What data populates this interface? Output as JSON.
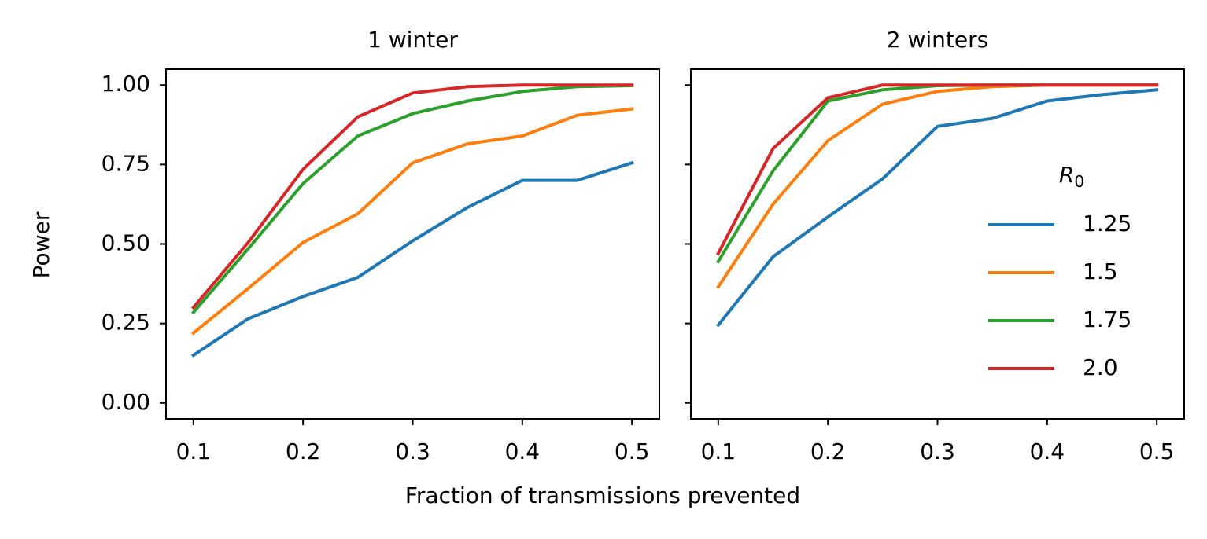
{
  "figure": {
    "ylabel": "Power",
    "xlabel": "Fraction of transmissions prevented"
  },
  "chart_data": [
    {
      "type": "line",
      "title": "1 winter",
      "xlabel": "Fraction of transmissions prevented",
      "ylabel": "Power",
      "x": [
        0.1,
        0.15,
        0.2,
        0.25,
        0.3,
        0.35,
        0.4,
        0.45,
        0.5
      ],
      "xlim": [
        0.075,
        0.525
      ],
      "ylim": [
        -0.05,
        1.05
      ],
      "xticks": [
        "0.1",
        "0.2",
        "0.3",
        "0.4",
        "0.5"
      ],
      "yticks": [
        "0.00",
        "0.25",
        "0.50",
        "0.75",
        "1.00"
      ],
      "grid": false,
      "series": [
        {
          "name": "1.25",
          "color": "#1f77b4",
          "values": [
            0.15,
            0.265,
            0.335,
            0.395,
            0.51,
            0.615,
            0.7,
            0.7,
            0.755
          ]
        },
        {
          "name": "1.5",
          "color": "#ff7f0e",
          "values": [
            0.22,
            0.36,
            0.505,
            0.595,
            0.755,
            0.815,
            0.84,
            0.905,
            0.925
          ]
        },
        {
          "name": "1.75",
          "color": "#2ca02c",
          "values": [
            0.285,
            0.485,
            0.69,
            0.84,
            0.91,
            0.95,
            0.98,
            0.995,
            0.998
          ]
        },
        {
          "name": "2.0",
          "color": "#d62728",
          "values": [
            0.3,
            0.505,
            0.735,
            0.9,
            0.975,
            0.995,
            1.0,
            1.0,
            1.0
          ]
        }
      ]
    },
    {
      "type": "line",
      "title": "2 winters",
      "xlabel": "Fraction of transmissions prevented",
      "ylabel": "Power",
      "x": [
        0.1,
        0.15,
        0.2,
        0.25,
        0.3,
        0.35,
        0.4,
        0.45,
        0.5
      ],
      "xlim": [
        0.075,
        0.525
      ],
      "ylim": [
        -0.05,
        1.05
      ],
      "xticks": [
        "0.1",
        "0.2",
        "0.3",
        "0.4",
        "0.5"
      ],
      "yticks": [
        "0.00",
        "0.25",
        "0.50",
        "0.75",
        "1.00"
      ],
      "grid": false,
      "legend": {
        "title": "R0",
        "title_main": "R",
        "title_sub": "0",
        "placement": "lower right"
      },
      "series": [
        {
          "name": "1.25",
          "color": "#1f77b4",
          "values": [
            0.245,
            0.46,
            0.585,
            0.705,
            0.87,
            0.895,
            0.95,
            0.97,
            0.985
          ]
        },
        {
          "name": "1.5",
          "color": "#ff7f0e",
          "values": [
            0.365,
            0.625,
            0.825,
            0.94,
            0.98,
            0.995,
            1.0,
            1.0,
            1.0
          ]
        },
        {
          "name": "1.75",
          "color": "#2ca02c",
          "values": [
            0.445,
            0.73,
            0.95,
            0.985,
            0.998,
            1.0,
            1.0,
            1.0,
            1.0
          ]
        },
        {
          "name": "2.0",
          "color": "#d62728",
          "values": [
            0.47,
            0.8,
            0.96,
            1.0,
            1.0,
            1.0,
            1.0,
            1.0,
            1.0
          ]
        }
      ]
    }
  ]
}
